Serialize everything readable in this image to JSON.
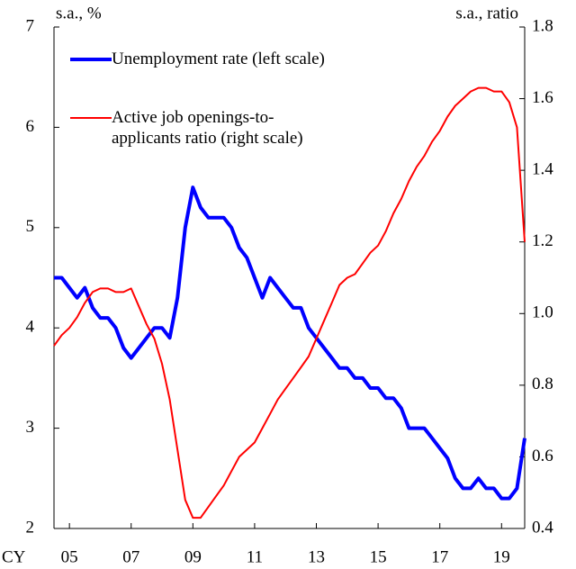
{
  "chart_data": {
    "type": "line",
    "y_label": "s.a., %",
    "y2_label": "s.a., ratio",
    "x_label": "CY",
    "x": [
      2005,
      2005.25,
      2005.5,
      2005.75,
      2006,
      2006.25,
      2006.5,
      2006.75,
      2007,
      2007.25,
      2007.5,
      2007.75,
      2008,
      2008.25,
      2008.5,
      2008.75,
      2009,
      2009.25,
      2009.5,
      2009.75,
      2010,
      2010.25,
      2010.5,
      2010.75,
      2011,
      2011.25,
      2011.5,
      2011.75,
      2012,
      2012.25,
      2012.5,
      2012.75,
      2013,
      2013.25,
      2013.5,
      2013.75,
      2014,
      2014.25,
      2014.5,
      2014.75,
      2015,
      2015.25,
      2015.5,
      2015.75,
      2016,
      2016.25,
      2016.5,
      2016.75,
      2017,
      2017.25,
      2017.5,
      2017.75,
      2018,
      2018.25,
      2018.5,
      2018.75,
      2019,
      2019.25,
      2019.5,
      2019.75,
      2020,
      2020.25
    ],
    "series": [
      {
        "name": "Unemployment rate (left scale)",
        "color": "#0000ff",
        "axis": "y",
        "values": [
          4.5,
          4.5,
          4.4,
          4.3,
          4.4,
          4.2,
          4.1,
          4.1,
          4.0,
          3.8,
          3.7,
          3.8,
          3.9,
          4.0,
          4.0,
          3.9,
          4.3,
          5.0,
          5.4,
          5.2,
          5.1,
          5.1,
          5.1,
          5.0,
          4.8,
          4.7,
          4.5,
          4.3,
          4.5,
          4.4,
          4.3,
          4.2,
          4.2,
          4.0,
          3.9,
          3.8,
          3.7,
          3.6,
          3.6,
          3.5,
          3.5,
          3.4,
          3.4,
          3.3,
          3.3,
          3.2,
          3.0,
          3.0,
          3.0,
          2.9,
          2.8,
          2.7,
          2.5,
          2.4,
          2.4,
          2.5,
          2.4,
          2.4,
          2.3,
          2.3,
          2.4,
          2.9
        ]
      },
      {
        "name": "Active job openings-to-applicants ratio (right scale)",
        "color": "#ff0000",
        "axis": "y2",
        "values": [
          0.91,
          0.94,
          0.96,
          0.99,
          1.03,
          1.06,
          1.07,
          1.07,
          1.06,
          1.06,
          1.07,
          1.02,
          0.97,
          0.93,
          0.86,
          0.76,
          0.62,
          0.48,
          0.43,
          0.43,
          0.46,
          0.49,
          0.52,
          0.56,
          0.6,
          0.62,
          0.64,
          0.68,
          0.72,
          0.76,
          0.79,
          0.82,
          0.85,
          0.88,
          0.93,
          0.98,
          1.03,
          1.08,
          1.1,
          1.11,
          1.14,
          1.17,
          1.19,
          1.23,
          1.28,
          1.32,
          1.37,
          1.41,
          1.44,
          1.48,
          1.51,
          1.55,
          1.58,
          1.6,
          1.62,
          1.63,
          1.63,
          1.62,
          1.62,
          1.59,
          1.52,
          1.2
        ]
      }
    ],
    "xlim": [
      2005,
      2020.25
    ],
    "xticks": [
      {
        "value": 2005.5,
        "label": "05"
      },
      {
        "value": 2007.5,
        "label": "07"
      },
      {
        "value": 2009.5,
        "label": "09"
      },
      {
        "value": 2011.5,
        "label": "11"
      },
      {
        "value": 2013.5,
        "label": "13"
      },
      {
        "value": 2015.5,
        "label": "15"
      },
      {
        "value": 2017.5,
        "label": "17"
      },
      {
        "value": 2019.5,
        "label": "19"
      }
    ],
    "ylim": [
      2,
      7
    ],
    "yticks": [
      2,
      3,
      4,
      5,
      6,
      7
    ],
    "y2lim": [
      0.4,
      1.8
    ],
    "y2ticks": [
      0.4,
      0.6,
      0.8,
      {
        "value": 1,
        "label": "1.0"
      },
      1.2,
      1.4,
      1.6,
      1.8
    ],
    "legend": "upper left",
    "grid": false
  }
}
